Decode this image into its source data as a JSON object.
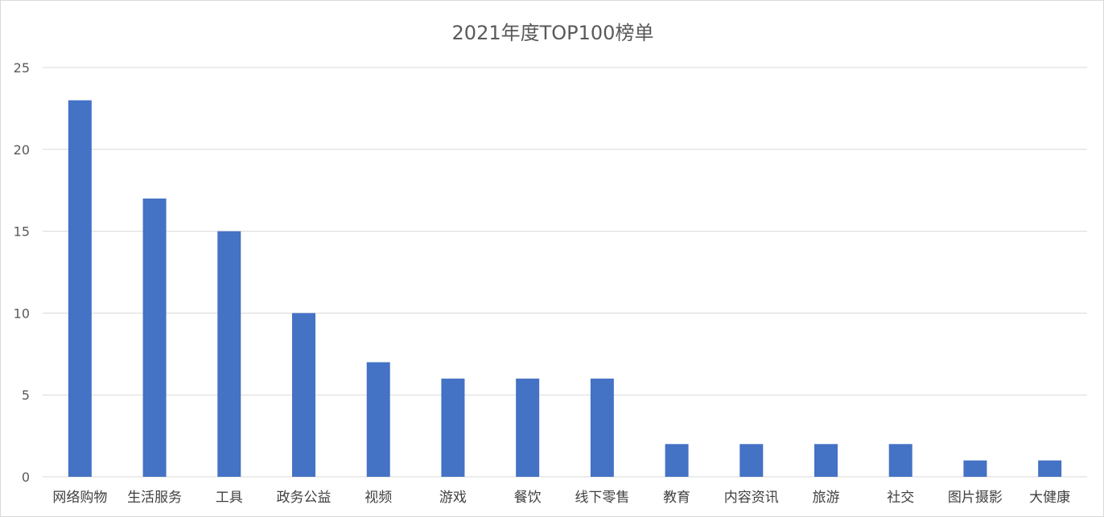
{
  "chart_data": {
    "type": "bar",
    "title": "2021年度TOP100榜单",
    "xlabel": "",
    "ylabel": "",
    "categories": [
      "网络购物",
      "生活服务",
      "工具",
      "政务公益",
      "视频",
      "游戏",
      "餐饮",
      "线下零售",
      "教育",
      "内容资讯",
      "旅游",
      "社交",
      "图片摄影",
      "大健康"
    ],
    "values": [
      23,
      17,
      15,
      10,
      7,
      6,
      6,
      6,
      2,
      2,
      2,
      2,
      1,
      1
    ],
    "ylim": [
      0,
      25
    ],
    "yticks": [
      0,
      5,
      10,
      15,
      20,
      25
    ],
    "grid": true,
    "legend": "none",
    "bar_color": "#4472c4"
  }
}
